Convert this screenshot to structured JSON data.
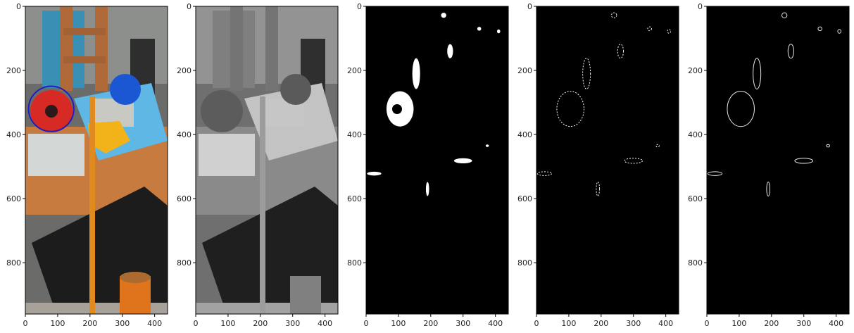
{
  "chart_data": [
    {
      "type": "image",
      "content": "color photo of workshop shelf with red ball circled in blue",
      "xlim": [
        0,
        440
      ],
      "ylim": [
        960,
        0
      ],
      "xticks": [
        0,
        100,
        200,
        300,
        400
      ],
      "yticks": [
        0,
        200,
        400,
        600,
        800
      ],
      "annotation": {
        "shape": "circle",
        "color": "#1f1fbf",
        "cx": 80,
        "cy": 320,
        "r": 70
      }
    },
    {
      "type": "image",
      "content": "grayscale version of photo",
      "xlim": [
        0,
        440
      ],
      "ylim": [
        960,
        0
      ],
      "xticks": [
        0,
        100,
        200,
        300,
        400
      ],
      "yticks": [
        0,
        200,
        400,
        600,
        800
      ]
    },
    {
      "type": "image",
      "content": "binary mask, white blobs on black",
      "xlim": [
        0,
        440
      ],
      "ylim": [
        960,
        0
      ],
      "xticks": [
        0,
        100,
        200,
        300,
        400
      ],
      "yticks": [
        0,
        200,
        400,
        600,
        800
      ],
      "blobs": [
        {
          "x": 105,
          "y": 320,
          "rx": 42,
          "ry": 55
        },
        {
          "x": 155,
          "y": 210,
          "rx": 12,
          "ry": 48
        },
        {
          "x": 260,
          "y": 140,
          "rx": 9,
          "ry": 22
        },
        {
          "x": 240,
          "y": 28,
          "rx": 8,
          "ry": 8
        },
        {
          "x": 350,
          "y": 70,
          "rx": 6,
          "ry": 6
        },
        {
          "x": 300,
          "y": 482,
          "rx": 28,
          "ry": 8
        },
        {
          "x": 190,
          "y": 570,
          "rx": 5,
          "ry": 22
        },
        {
          "x": 25,
          "y": 522,
          "rx": 22,
          "ry": 6
        },
        {
          "x": 410,
          "y": 78,
          "rx": 5,
          "ry": 6
        },
        {
          "x": 375,
          "y": 435,
          "rx": 5,
          "ry": 4
        }
      ]
    },
    {
      "type": "image",
      "content": "edge detection, scattered white edges",
      "xlim": [
        0,
        440
      ],
      "ylim": [
        960,
        0
      ],
      "xticks": [
        0,
        100,
        200,
        300,
        400
      ],
      "yticks": [
        0,
        200,
        400,
        600,
        800
      ]
    },
    {
      "type": "image",
      "content": "contour outlines, thin white lines on black",
      "xlim": [
        0,
        440
      ],
      "ylim": [
        960,
        0
      ],
      "xticks": [
        0,
        100,
        200,
        300,
        400
      ],
      "yticks": [
        0,
        200,
        400,
        600,
        800
      ]
    }
  ],
  "colors": {
    "axis": "#000000",
    "mask_bg": "#000000",
    "mask_fg": "#ffffff",
    "circle": "#1f1fbf",
    "ball_red": "#d72a24",
    "ball_blue": "#1c57d3",
    "orange_pole": "#e18b1e",
    "wood": "#c87b3e",
    "bin_blue": "#5fb7e6",
    "box_dark": "#1c1c1c"
  }
}
